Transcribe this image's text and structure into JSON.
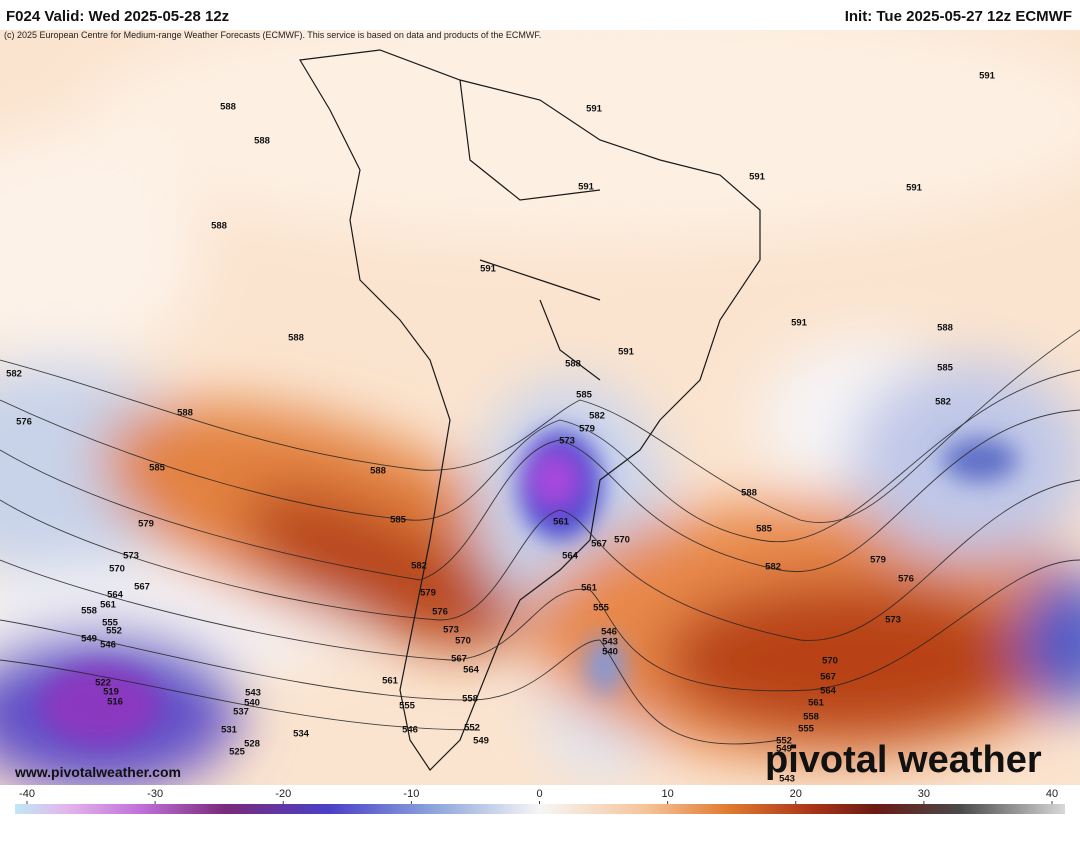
{
  "header": {
    "title_left": "F024 Valid: Wed 2025-05-28 12z",
    "title_right": "Init: Tue 2025-05-27 12z ECMWF",
    "credit": "(c) 2025 European Centre for Medium-range Weather Forecasts (ECMWF). This service is based on data and products of the ECMWF."
  },
  "map": {
    "contour_labels": [
      588,
      588,
      588,
      588,
      588,
      582,
      576,
      585,
      579,
      573,
      570,
      567,
      564,
      561,
      558,
      555,
      552,
      549,
      546,
      522,
      519,
      516,
      543,
      540,
      537,
      531,
      534,
      528,
      525,
      588,
      585,
      582,
      579,
      576,
      573,
      570,
      567,
      564,
      561,
      558,
      555,
      546,
      552,
      549,
      591,
      591,
      591,
      591,
      591,
      591,
      591,
      588,
      585,
      582,
      579,
      573,
      561,
      564,
      567,
      570,
      561,
      555,
      546,
      543,
      540,
      588,
      585,
      582,
      579,
      576,
      573,
      570,
      567,
      564,
      561,
      558,
      555,
      552,
      549,
      543,
      588,
      585,
      582,
      591
    ]
  },
  "watermark": {
    "logo": "pivotal weather",
    "url": "www.pivotalweather.com"
  },
  "colorbar": {
    "ticks": [
      -40,
      -30,
      -20,
      -10,
      0,
      10,
      20,
      30,
      40
    ]
  }
}
